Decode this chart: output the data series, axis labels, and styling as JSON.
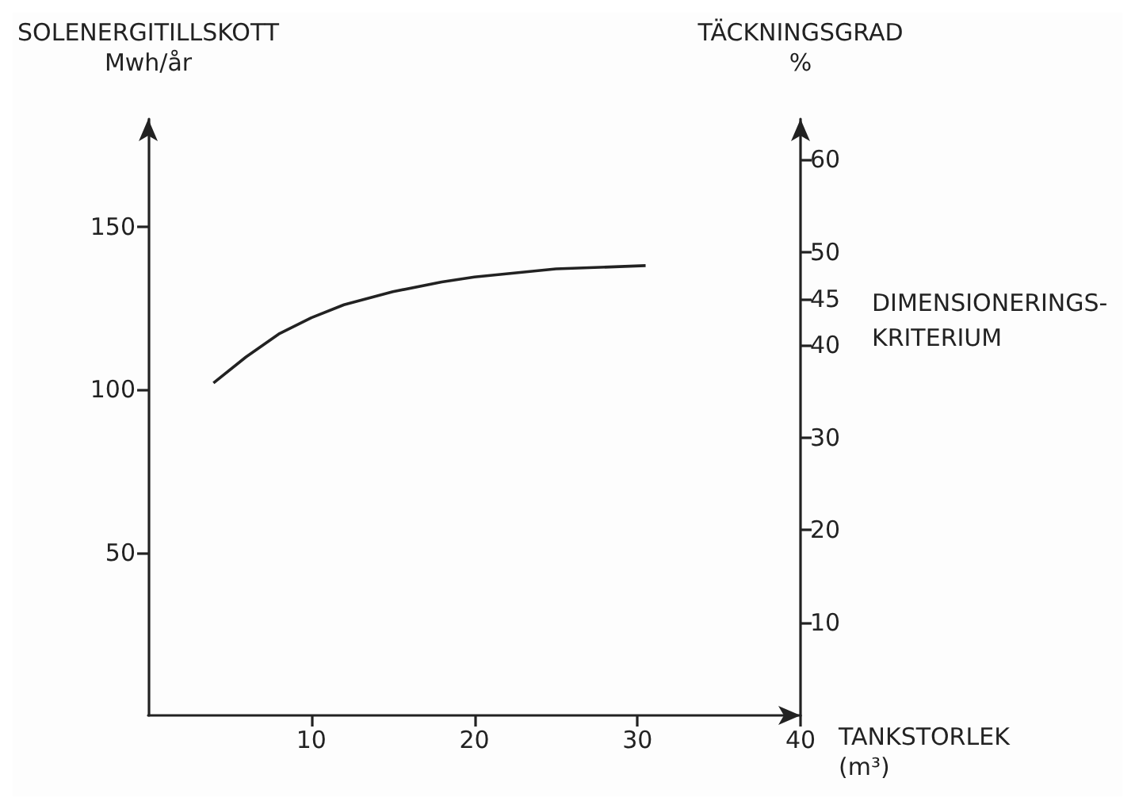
{
  "chart_data": {
    "type": "line",
    "xlabel": "TANKSTORLEK (m³)",
    "ylabel": "SOLENERGITILLSKOTT Mwh/år",
    "y2label": "TÄCKNINGSGRAD %",
    "annotations": [
      "DIMENSIONERINGS-KRITERIUM"
    ],
    "xlim": [
      0,
      40
    ],
    "xticks": [
      10,
      20,
      30,
      40
    ],
    "ylim": [
      0,
      183
    ],
    "yticks": [
      50,
      100,
      150
    ],
    "y2lim": [
      0,
      64.4
    ],
    "y2ticks": [
      10,
      20,
      30,
      40,
      45,
      50,
      60
    ],
    "grid": false,
    "marker": "none",
    "line_style": "solid",
    "series": [
      {
        "color": "#222222",
        "x": [
          4,
          6,
          8,
          10,
          12,
          15,
          18,
          20,
          25,
          30.5
        ],
        "values": [
          102,
          110,
          117,
          122,
          126,
          130,
          133,
          134.5,
          137,
          138
        ]
      }
    ]
  }
}
